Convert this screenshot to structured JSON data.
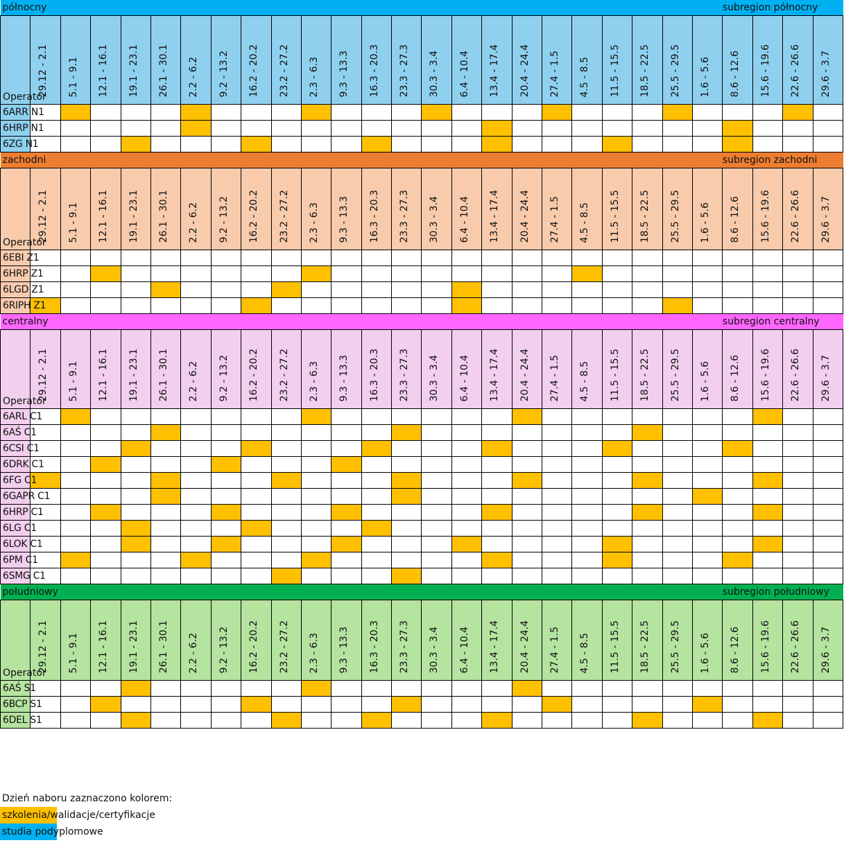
{
  "operator_label": "Operator",
  "dates": [
    "29.12 - 2.1",
    "5.1 - 9.1",
    "12.1 - 16.1",
    "19.1 - 23.1",
    "26.1 - 30.1",
    "2.2 - 6.2",
    "9.2 - 13.2",
    "16.2 - 20.2",
    "23.2 - 27.2",
    "2.3 - 6.3",
    "9.3 - 13.3",
    "16.3 - 20.3",
    "23.3 - 27.3",
    "30.3 - 3.4",
    "6.4 - 10.4",
    "13.4 - 17.4",
    "20.4 - 24.4",
    "27.4 - 1.5",
    "4.5 - 8.5",
    "11.5 - 15.5",
    "18.5 - 22.5",
    "25.5 - 29.5",
    "1.6 - 5.6",
    "8.6 - 12.6",
    "15.6 - 19.6",
    "22.6 - 26.6",
    "29.6 - 3.7"
  ],
  "colors": {
    "mark": "#ffc000",
    "legend_training": "#ffc000",
    "legend_postgrad": "#00b0f0"
  },
  "sections": [
    {
      "name": "północny",
      "subregion": "subregion północny",
      "band_color": "#00b0f0",
      "light_color": "#8fd0ef",
      "rows": [
        {
          "operator": "6ARR N1",
          "marked": [
            1,
            5,
            9,
            13,
            17,
            21,
            25
          ]
        },
        {
          "operator": "6HRP N1",
          "marked": [
            5,
            15,
            23
          ]
        },
        {
          "operator": "6ZG N1",
          "marked": [
            3,
            7,
            11,
            15,
            19,
            23
          ]
        }
      ]
    },
    {
      "name": "zachodni",
      "subregion": "subregion zachodni",
      "band_color": "#ed7d31",
      "light_color": "#f8cbad",
      "rows": [
        {
          "operator": "6EBI Z1",
          "marked": []
        },
        {
          "operator": "6HRP Z1",
          "marked": [
            2,
            9,
            18
          ]
        },
        {
          "operator": "6LGD Z1",
          "marked": [
            4,
            8,
            14
          ]
        },
        {
          "operator": "6RIPH Z1",
          "marked": [
            0,
            7,
            14,
            21
          ]
        }
      ]
    },
    {
      "name": "centralny",
      "subregion": "subregion centralny",
      "band_color": "#ff66ff",
      "light_color": "#f2cfee",
      "rows": [
        {
          "operator": "6ARL C1",
          "marked": [
            1,
            9,
            16,
            24
          ]
        },
        {
          "operator": "6AŚ C1",
          "marked": [
            4,
            12,
            20
          ]
        },
        {
          "operator": "6CSI C1",
          "marked": [
            3,
            7,
            11,
            15,
            19,
            23
          ]
        },
        {
          "operator": "6DRK C1",
          "marked": [
            2,
            6,
            10
          ]
        },
        {
          "operator": "6FG C1",
          "marked": [
            0,
            4,
            8,
            12,
            16,
            20,
            24
          ]
        },
        {
          "operator": "6GAPR C1",
          "marked": [
            4,
            12,
            22
          ]
        },
        {
          "operator": "6HRP C1",
          "marked": [
            2,
            6,
            10,
            15,
            20,
            24
          ]
        },
        {
          "operator": "6LG C1",
          "marked": [
            3,
            7,
            11
          ]
        },
        {
          "operator": "6LOK C1",
          "marked": [
            3,
            6,
            10,
            14,
            19,
            24
          ]
        },
        {
          "operator": "6PM C1",
          "marked": [
            1,
            5,
            9,
            15,
            19,
            23
          ]
        },
        {
          "operator": "6SMG C1",
          "marked": [
            8,
            12
          ]
        }
      ]
    },
    {
      "name": "południowy",
      "subregion": "subregion południowy",
      "band_color": "#00b050",
      "light_color": "#b5e3a0",
      "rows": [
        {
          "operator": "6AŚ S1",
          "marked": [
            3,
            9,
            16
          ]
        },
        {
          "operator": "6BCP S1",
          "marked": [
            2,
            7,
            12,
            17,
            22
          ]
        },
        {
          "operator": "6DEL S1",
          "marked": [
            3,
            8,
            11,
            15,
            20,
            24
          ]
        }
      ]
    }
  ],
  "legend": {
    "title": "Dzień naboru zaznaczono kolorem:",
    "training": "szkolenia/walidacje/certyfikacje",
    "postgrad": "studia podyplomowe"
  }
}
